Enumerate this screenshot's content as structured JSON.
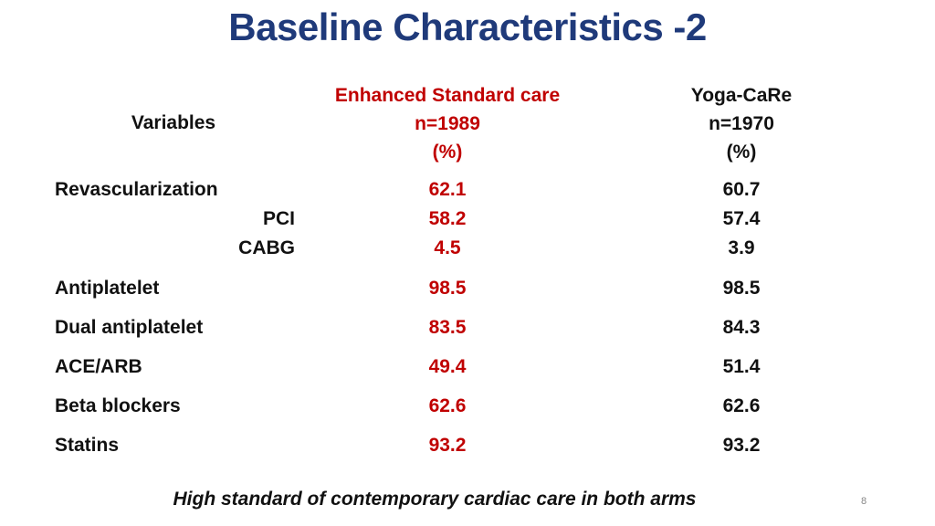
{
  "slide": {
    "title": "Baseline Characteristics -2",
    "footer": "High standard of contemporary cardiac care in both arms",
    "page_number": "8"
  },
  "table": {
    "header": {
      "variables": "Variables",
      "group1": {
        "name": "Enhanced Standard care",
        "n": "n=1989",
        "unit": "(%)"
      },
      "group2": {
        "name": "Yoga-CaRe",
        "n": "n=1970",
        "unit": "(%)"
      }
    },
    "rows": [
      {
        "label": "Revascularization",
        "esc": "62.1",
        "yoga": "60.7"
      },
      {
        "label": "PCI",
        "esc": "58.2",
        "yoga": "57.4"
      },
      {
        "label": "CABG",
        "esc": "4.5",
        "yoga": "3.9"
      },
      {
        "label": "Antiplatelet",
        "esc": "98.5",
        "yoga": "98.5"
      },
      {
        "label": "Dual antiplatelet",
        "esc": "83.5",
        "yoga": "84.3"
      },
      {
        "label": "ACE/ARB",
        "esc": "49.4",
        "yoga": "51.4"
      },
      {
        "label": "Beta blockers",
        "esc": "62.6",
        "yoga": "62.6"
      },
      {
        "label": "Statins",
        "esc": "93.2",
        "yoga": "93.2"
      }
    ]
  },
  "colors": {
    "title": "#1f3a7a",
    "group1_text": "#c00000",
    "body_text": "#111111"
  }
}
